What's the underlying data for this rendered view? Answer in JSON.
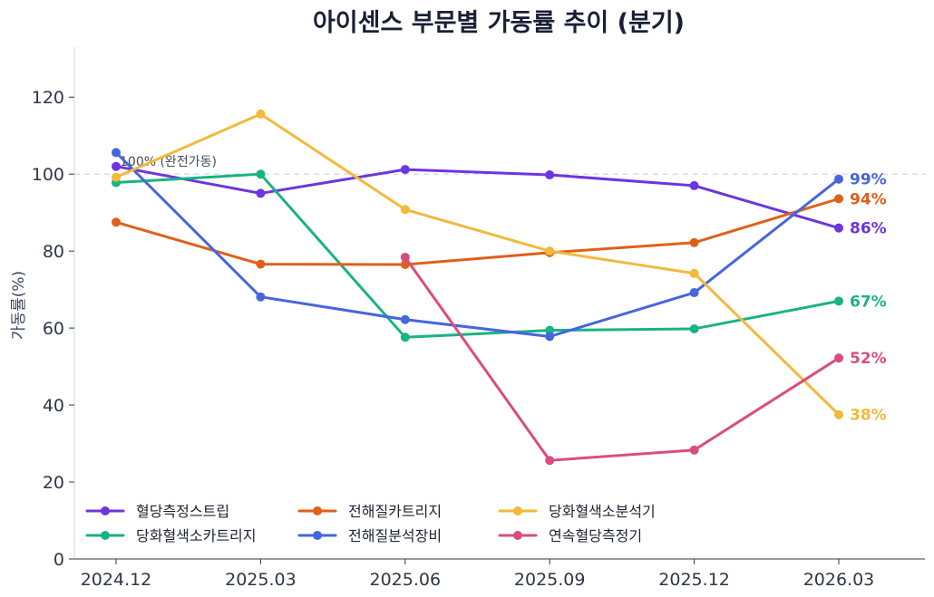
{
  "chart_data": {
    "type": "line",
    "title": "아이센스 부문별 가동률 추이 (분기)",
    "xlabel": "",
    "ylabel": "가동률(%)",
    "x": [
      "2024.12",
      "2025.03",
      "2025.06",
      "2025.09",
      "2025.12",
      "2026.03"
    ],
    "ylim": [
      0,
      133
    ],
    "yticks": [
      0,
      20,
      40,
      60,
      80,
      100,
      120
    ],
    "grid": false,
    "legend": "bottom-left",
    "reference_line": {
      "y": 100,
      "label": "100% (완전가동)"
    },
    "series": [
      {
        "name": "혈당측정스트립",
        "color": "#6d35e0",
        "values": [
          102,
          95,
          101.2,
          99.8,
          97,
          86
        ],
        "end_label": "86%"
      },
      {
        "name": "당화혈색소카트리지",
        "color": "#19b382",
        "values": [
          97.8,
          100,
          57.6,
          59.4,
          59.8,
          67
        ],
        "end_label": "67%"
      },
      {
        "name": "전해질카트리지",
        "color": "#e0601a",
        "values": [
          87.5,
          76.6,
          76.5,
          79.6,
          82.2,
          93.6
        ],
        "end_label": "94%"
      },
      {
        "name": "전해질분석장비",
        "color": "#4566dc",
        "values": [
          105.6,
          68.1,
          62.2,
          57.8,
          69.2,
          98.7
        ],
        "end_label": "99%"
      },
      {
        "name": "당화혈색소분석기",
        "color": "#f2b93b",
        "values": [
          99.2,
          115.6,
          90.8,
          80,
          74.2,
          37.5
        ],
        "end_label": "38%"
      },
      {
        "name": "연속혈당측정기",
        "color": "#db4c7e",
        "values": [
          null,
          null,
          78.4,
          25.6,
          28.3,
          52.2
        ],
        "end_label": "52%"
      }
    ]
  }
}
